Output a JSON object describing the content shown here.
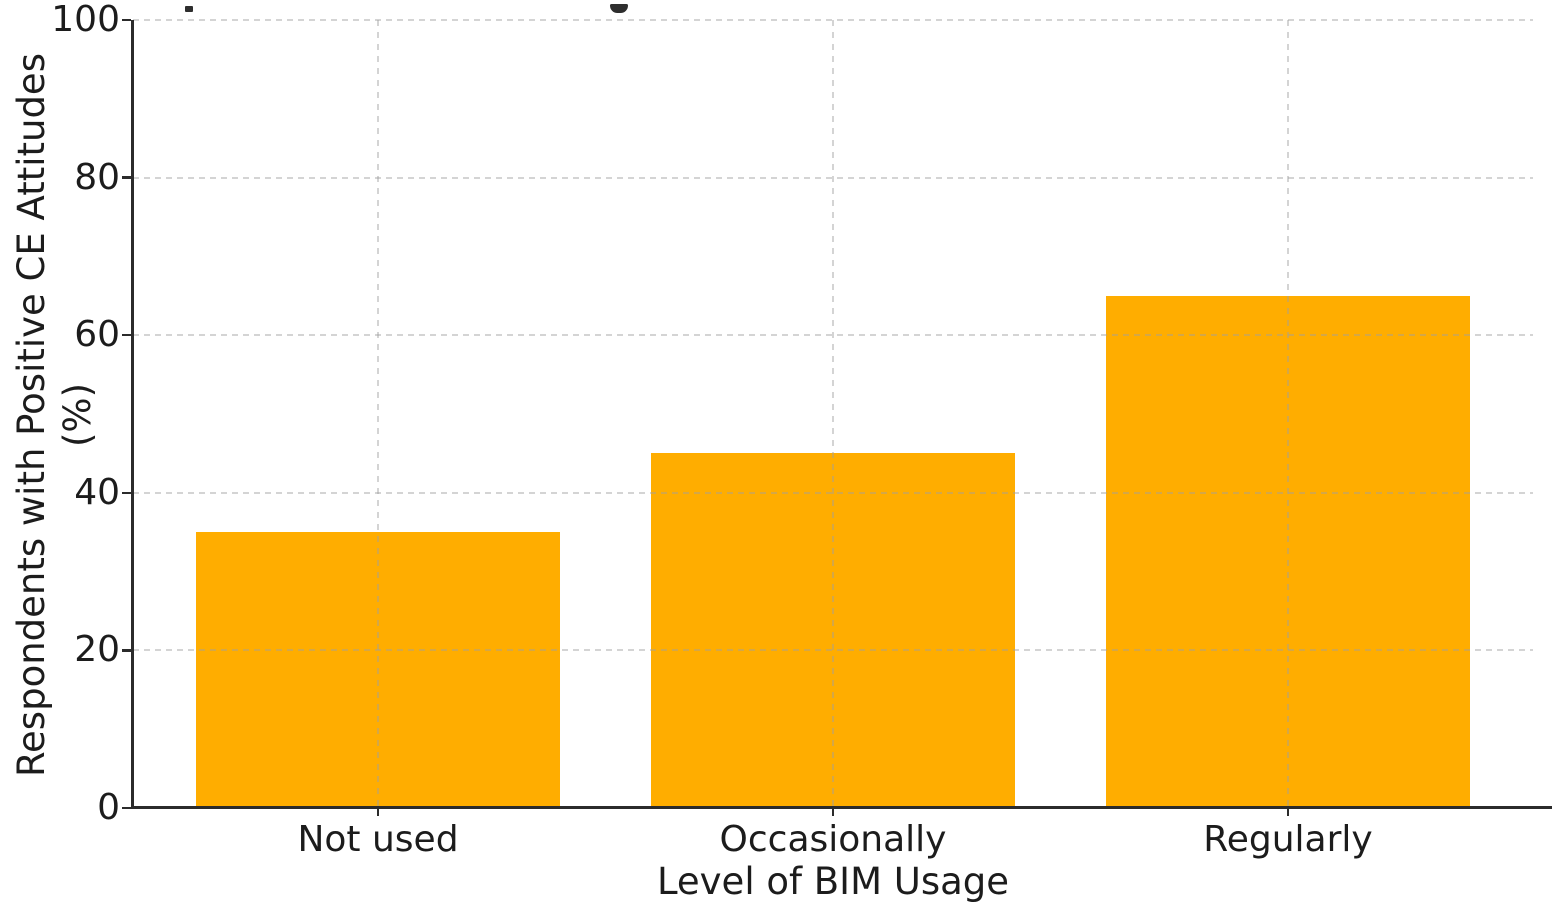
{
  "chart_data": {
    "type": "bar",
    "title": "",
    "categories": [
      "Not used",
      "Occasionally",
      "Regularly"
    ],
    "values": [
      35,
      45,
      65
    ],
    "xlabel": "Level of BIM Usage",
    "ylabel": "Respondents with Positive CE Attitudes (%)",
    "ylim": [
      0,
      100
    ],
    "yticks": [
      0,
      20,
      40,
      60,
      80,
      100
    ],
    "bar_color": "#FFAD00",
    "grid": {
      "horizontal": true,
      "vertical": true,
      "style": "dashed",
      "drawn_above_bars": true
    },
    "legend": null
  },
  "colors": {
    "background": "#FFFFFF",
    "bar": "#FFAD00",
    "axis": "#2B2B2B",
    "text": "#1C1C1C",
    "gridline": "rgba(160,160,160,0.45)"
  }
}
